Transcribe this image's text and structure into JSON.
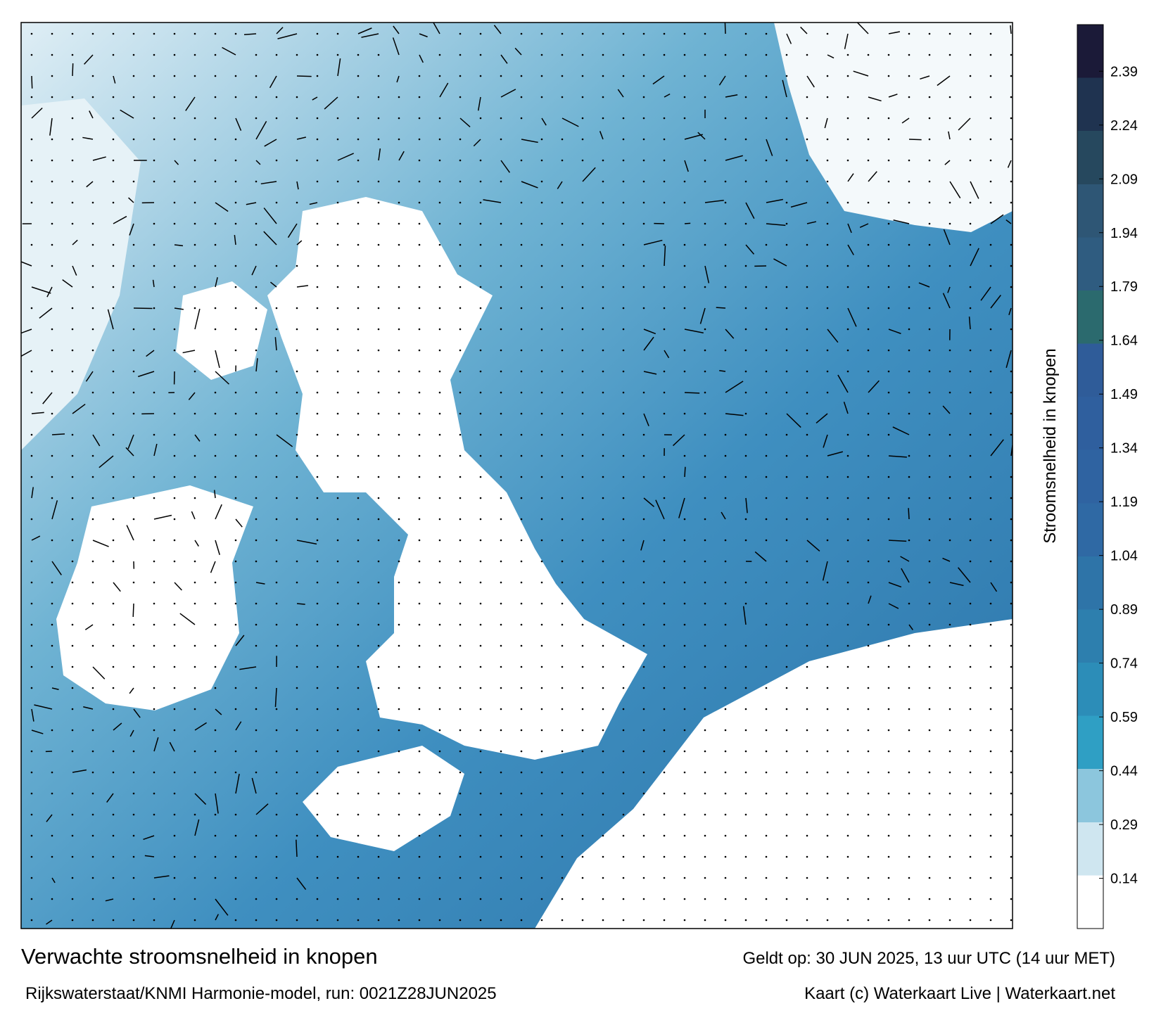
{
  "header": {
    "title": "Verwachte stroomsnelheid in knopen",
    "subtitle": "Rijkswaterstaat/KNMI Harmonie-model, run: 0021Z28JUN2025",
    "valid": "Geldt op: 30 JUN 2025, 13 uur UTC (14 uur MET)",
    "credit": "Kaart (c) Waterkaart Live | Waterkaart.net"
  },
  "colorbar": {
    "label": "Stroomsnelheid in knopen",
    "lim": [
      0,
      2.52
    ],
    "ticks": [
      0.14,
      0.29,
      0.44,
      0.59,
      0.74,
      0.89,
      1.04,
      1.19,
      1.34,
      1.49,
      1.64,
      1.79,
      1.94,
      2.09,
      2.24,
      2.39
    ],
    "colors": [
      "#ffffff",
      "#cfe6f0",
      "#8cc6dd",
      "#2f9fc4",
      "#2c8db8",
      "#2d7fae",
      "#2e74a8",
      "#2f69a4",
      "#2f63a1",
      "#2f5f9e",
      "#2f5c99",
      "#2b6a6e",
      "#2f5c80",
      "#2e5675",
      "#26485e",
      "#1f3350",
      "#1b1a38"
    ]
  }
}
